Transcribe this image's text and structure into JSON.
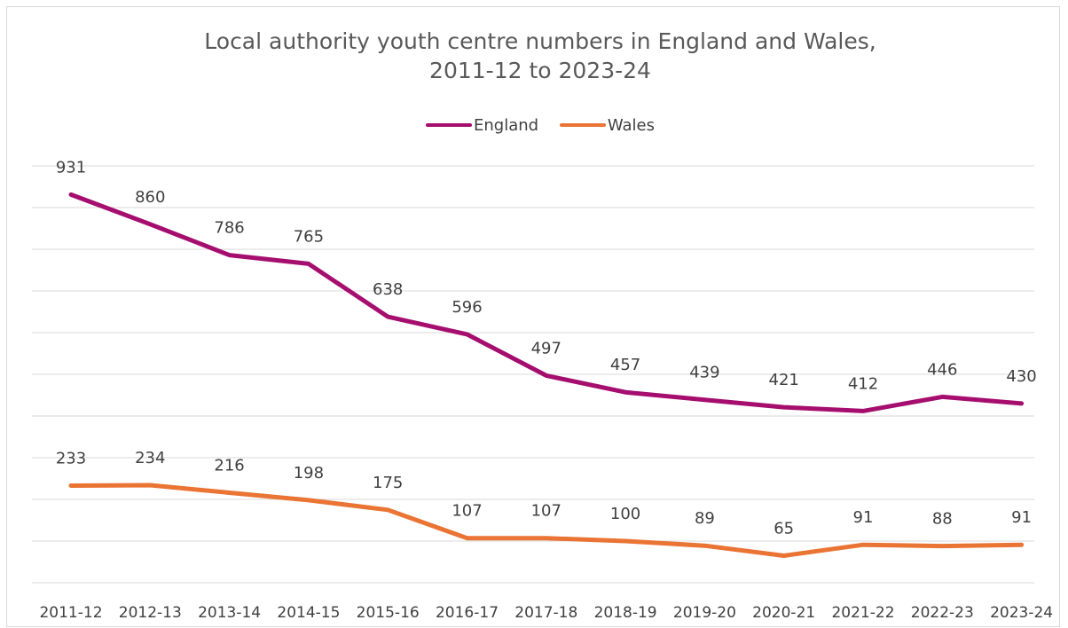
{
  "chart_data": {
    "type": "line",
    "title": "Local authority youth centre numbers in England and Wales, 2011-12 to 2023-24",
    "title_lines": [
      "Local authority youth centre numbers in England and Wales,",
      "2011-12 to 2023-24"
    ],
    "xlabel": "",
    "ylabel": "",
    "categories": [
      "2011-12",
      "2012-13",
      "2013-14",
      "2014-15",
      "2015-16",
      "2016-17",
      "2017-18",
      "2018-19",
      "2019-20",
      "2020-21",
      "2021-22",
      "2022-23",
      "2023-24"
    ],
    "series": [
      {
        "name": "England",
        "color": "#a50e6e",
        "values": [
          931,
          860,
          786,
          765,
          638,
          596,
          497,
          457,
          439,
          421,
          412,
          446,
          430
        ]
      },
      {
        "name": "Wales",
        "color": "#ea7434",
        "values": [
          233,
          234,
          216,
          198,
          175,
          107,
          107,
          100,
          89,
          65,
          91,
          88,
          91
        ]
      }
    ],
    "ylim": [
      0,
      1000
    ],
    "grid": true,
    "legend_position": "top",
    "data_labels": true
  }
}
